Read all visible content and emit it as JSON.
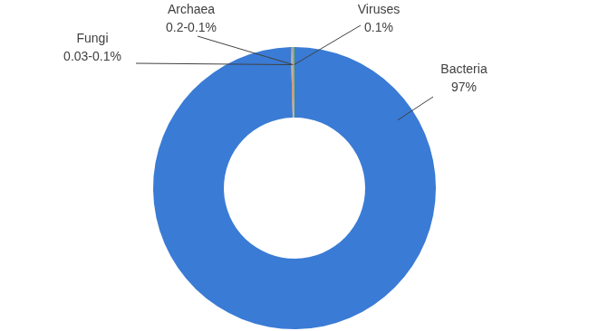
{
  "chart_data": {
    "type": "doughnut",
    "categories": [
      "Bacteria",
      "Fungi",
      "Archaea",
      "Viruses"
    ],
    "values": [
      97,
      0.1,
      0.2,
      0.1
    ],
    "value_labels": [
      "97%",
      "0.03-0.1%",
      "0.2-0.1%",
      "0.1%"
    ],
    "colors": [
      "#3a7bd5",
      "#ed7d31",
      "#a5a5a5",
      "#70ad47"
    ],
    "data_labels": true
  }
}
